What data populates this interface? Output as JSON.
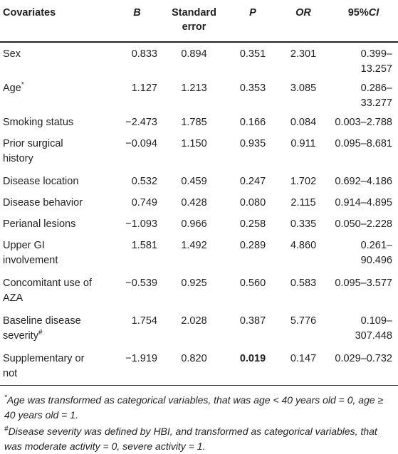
{
  "headers": {
    "covariates": "Covariates",
    "b": "B",
    "se_line1": "Standard",
    "se_line2": "error",
    "p": "P",
    "or": "OR",
    "ci_pre": "95%",
    "ci_italic": "CI"
  },
  "rows": [
    {
      "label": "Sex",
      "label2": "",
      "sup": "",
      "b": "0.833",
      "se": "0.894",
      "p": "0.351",
      "or": "2.301",
      "ci": "0.399–13.257"
    },
    {
      "label": "Age",
      "label2": "",
      "sup": "*",
      "b": "1.127",
      "se": "1.213",
      "p": "0.353",
      "or": "3.085",
      "ci": "0.286–33.277"
    },
    {
      "label": "Smoking status",
      "label2": "",
      "sup": "",
      "b": "−2.473",
      "se": "1.785",
      "p": "0.166",
      "or": "0.084",
      "ci": "0.003–2.788"
    },
    {
      "label": "Prior surgical",
      "label2": "history",
      "sup": "",
      "b": "−0.094",
      "se": "1.150",
      "p": "0.935",
      "or": "0.911",
      "ci": "0.095–8.681"
    },
    {
      "label": "Disease location",
      "label2": "",
      "sup": "",
      "b": "0.532",
      "se": "0.459",
      "p": "0.247",
      "or": "1.702",
      "ci": "0.692–4.186"
    },
    {
      "label": "Disease behavior",
      "label2": "",
      "sup": "",
      "b": "0.749",
      "se": "0.428",
      "p": "0.080",
      "or": "2.115",
      "ci": "0.914–4.895"
    },
    {
      "label": "Perianal lesions",
      "label2": "",
      "sup": "",
      "b": "−1.093",
      "se": "0.966",
      "p": "0.258",
      "or": "0.335",
      "ci": "0.050–2.228"
    },
    {
      "label": "Upper GI",
      "label2": "involvement",
      "sup": "",
      "b": "1.581",
      "se": "1.492",
      "p": "0.289",
      "or": "4.860",
      "ci": "0.261–90.496"
    },
    {
      "label": "Concomitant use of",
      "label2": "AZA",
      "sup": "",
      "b": "−0.539",
      "se": "0.925",
      "p": "0.560",
      "or": "0.583",
      "ci": "0.095–3.577"
    },
    {
      "label": "Baseline disease",
      "label2": "severity",
      "sup": "#",
      "b": "1.754",
      "se": "2.028",
      "p": "0.387",
      "or": "5.776",
      "ci": "0.109–307.448"
    },
    {
      "label": "Supplementary or",
      "label2": "not",
      "sup": "",
      "b": "−1.919",
      "se": "0.820",
      "p": "0.019",
      "or": "0.147",
      "ci": "0.029–0.732"
    }
  ],
  "notes": {
    "n1_mark": "*",
    "n1_text": "Age was transformed as categorical variables, that was age < 40 years old = 0, age ≥ 40 years old = 1.",
    "n2_mark": "#",
    "n2_text": "Disease severity was defined by HBI, and transformed as categorical variables, that was moderate activity = 0, severe activity = 1."
  }
}
